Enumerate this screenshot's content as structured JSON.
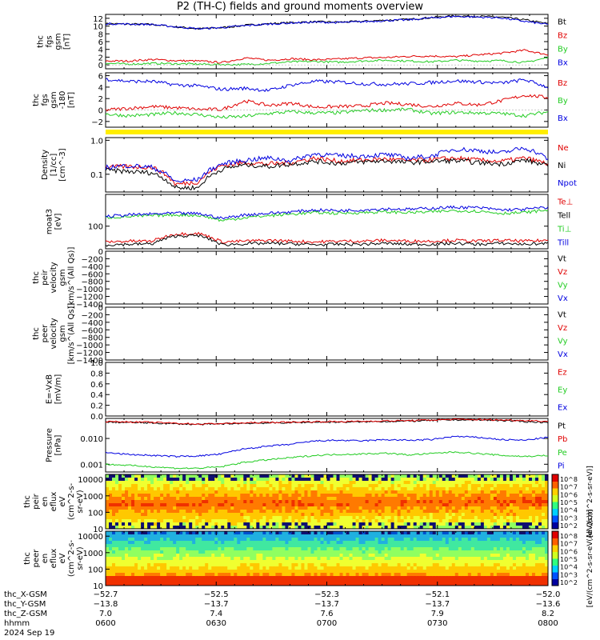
{
  "title": "P2 (TH-C) fields and ground moments overview",
  "colors": {
    "black": "#000000",
    "red": "#e00000",
    "green": "#22cc22",
    "blue": "#0000e0",
    "yellow": "#ffee00"
  },
  "chart_data": [
    {
      "id": "bfield_gsm",
      "type": "line",
      "ylabel": [
        "thc",
        "fgs",
        "gsm",
        "[nT]"
      ],
      "ylim": [
        -1,
        13
      ],
      "yticks": [
        "12",
        "10",
        "8",
        "6",
        "4",
        "2",
        "0"
      ],
      "series": [
        {
          "name": "Bt",
          "color": "black",
          "values": [
            10.6,
            10.5,
            10.4,
            9.8,
            9.3,
            9.6,
            10.2,
            10.6,
            10.9,
            11.1,
            11.0,
            11.2,
            11.5,
            11.7,
            12.2,
            12.6,
            12.5,
            12.3,
            11.6,
            10.6
          ]
        },
        {
          "name": "Bz",
          "color": "red",
          "values": [
            1.0,
            1.0,
            1.4,
            1.1,
            1.0,
            0.6,
            1.8,
            1.2,
            1.6,
            1.3,
            1.5,
            1.8,
            1.9,
            2.2,
            2.3,
            2.1,
            2.6,
            3.0,
            3.8,
            2.6
          ]
        },
        {
          "name": "By",
          "color": "green",
          "values": [
            0.4,
            0.2,
            0.4,
            0.3,
            0.2,
            0.1,
            0.1,
            0.4,
            0.8,
            0.9,
            0.7,
            1.0,
            1.2,
            1.0,
            0.8,
            1.2,
            1.0,
            1.1,
            0.6,
            1.9
          ]
        },
        {
          "name": "Bx",
          "color": "blue",
          "values": [
            10.6,
            10.5,
            10.4,
            9.8,
            9.3,
            9.6,
            10.1,
            10.5,
            10.8,
            11.0,
            10.9,
            11.1,
            11.4,
            11.6,
            12.1,
            12.5,
            12.3,
            12.1,
            11.2,
            10.4
          ]
        }
      ]
    },
    {
      "id": "bfield_detrended",
      "type": "line",
      "ylabel": [
        "thc",
        "fgs",
        "gsm",
        "-180",
        "[nT]"
      ],
      "ylim": [
        -3,
        6.5
      ],
      "yticks": [
        "6",
        "4",
        "2",
        "0",
        "−2"
      ],
      "series": [
        {
          "name": "Bz",
          "color": "red",
          "values": [
            0.0,
            0.3,
            0.6,
            0.4,
            0.1,
            0.1,
            1.6,
            0.8,
            1.2,
            0.5,
            0.6,
            0.7,
            1.2,
            1.0,
            0.6,
            1.2,
            0.9,
            1.6,
            2.6,
            2.2
          ]
        },
        {
          "name": "By",
          "color": "green",
          "values": [
            -0.7,
            -1.0,
            -0.8,
            -0.5,
            -0.8,
            -1.3,
            -1.1,
            -0.6,
            -0.3,
            -0.5,
            -0.5,
            -0.1,
            0.0,
            0.1,
            -0.6,
            -0.4,
            -0.5,
            -0.6,
            -1.0,
            -0.3
          ]
        },
        {
          "name": "Bx",
          "color": "blue",
          "values": [
            5.4,
            5.0,
            5.0,
            4.4,
            4.2,
            3.6,
            3.8,
            3.4,
            4.4,
            5.0,
            4.9,
            4.6,
            4.5,
            4.6,
            4.8,
            5.1,
            4.9,
            4.7,
            5.3,
            4.0
          ]
        }
      ]
    },
    {
      "id": "density",
      "type": "line",
      "log": true,
      "ylabel": [
        "Density",
        "[1/cc]",
        "[cm^-3]"
      ],
      "ylim": [
        0.03,
        1.2
      ],
      "yticks": [
        "1.0",
        "0.1"
      ],
      "series": [
        {
          "name": "Ne",
          "color": "red",
          "values": [
            0.16,
            0.17,
            0.16,
            0.05,
            0.06,
            0.18,
            0.22,
            0.2,
            0.22,
            0.3,
            0.24,
            0.26,
            0.28,
            0.25,
            0.27,
            0.3,
            0.26,
            0.24,
            0.3,
            0.2
          ]
        },
        {
          "name": "Ni",
          "color": "black",
          "values": [
            0.13,
            0.12,
            0.11,
            0.04,
            0.04,
            0.14,
            0.19,
            0.17,
            0.2,
            0.24,
            0.21,
            0.23,
            0.25,
            0.22,
            0.24,
            0.25,
            0.22,
            0.2,
            0.26,
            0.17
          ]
        },
        {
          "name": "Npot",
          "color": "blue",
          "values": [
            0.16,
            0.18,
            0.16,
            0.06,
            0.07,
            0.2,
            0.26,
            0.3,
            0.25,
            0.4,
            0.35,
            0.34,
            0.38,
            0.3,
            0.34,
            0.55,
            0.5,
            0.42,
            0.6,
            0.28
          ]
        }
      ]
    },
    {
      "id": "temperature",
      "type": "line",
      "log": true,
      "ylabel": [
        "moat3",
        "[eV]"
      ],
      "ylim": [
        25,
        700
      ],
      "yticks": [
        "100"
      ],
      "series": [
        {
          "name": "Te⊥",
          "color": "red",
          "values": [
            38,
            40,
            40,
            62,
            64,
            38,
            40,
            42,
            40,
            38,
            40,
            40,
            42,
            40,
            40,
            42,
            40,
            42,
            40,
            42
          ]
        },
        {
          "name": "Tell",
          "color": "black",
          "values": [
            32,
            33,
            34,
            55,
            56,
            32,
            34,
            35,
            34,
            32,
            33,
            33,
            35,
            33,
            33,
            35,
            33,
            35,
            33,
            35
          ]
        },
        {
          "name": "Ti⊥",
          "color": "green",
          "values": [
            170,
            180,
            190,
            200,
            195,
            140,
            170,
            190,
            210,
            230,
            220,
            230,
            240,
            230,
            240,
            260,
            250,
            220,
            230,
            270
          ]
        },
        {
          "name": "Till",
          "color": "blue",
          "values": [
            180,
            200,
            210,
            220,
            215,
            160,
            200,
            220,
            240,
            270,
            260,
            270,
            290,
            280,
            300,
            320,
            310,
            270,
            280,
            320
          ]
        }
      ]
    },
    {
      "id": "ion_velocity",
      "type": "line",
      "ylabel": [
        "thc",
        "peir",
        "velocity",
        "gsm",
        "[km/s^(All Qs)]"
      ],
      "ylim": [
        -1400,
        0
      ],
      "yticks": [
        "0",
        "−200",
        "−400",
        "−600",
        "−800",
        "−1000",
        "−1200",
        "−1400"
      ],
      "legend": [
        "Vt",
        "Vz",
        "Vy",
        "Vx"
      ],
      "series": []
    },
    {
      "id": "electron_velocity",
      "type": "line",
      "ylabel": [
        "thc",
        "peer",
        "velocity",
        "gsm",
        "[km/s^(All Qs)]"
      ],
      "ylim": [
        -1400,
        0
      ],
      "yticks": [
        "0",
        "−200",
        "−400",
        "−600",
        "−800",
        "−1000",
        "−1200",
        "−1400"
      ],
      "legend": [
        "Vt",
        "Vz",
        "Vy",
        "Vx"
      ],
      "series": []
    },
    {
      "id": "efield",
      "type": "line",
      "ylabel": [
        "E=-VxB",
        "[mV/m]"
      ],
      "ylim": [
        0,
        1
      ],
      "yticks": [
        "1.0",
        "0.8",
        "0.6",
        "0.4",
        "0.2",
        "0.0"
      ],
      "legend": [
        "Ez",
        "Ey",
        "Ex"
      ],
      "series": []
    },
    {
      "id": "pressure",
      "type": "line",
      "log": true,
      "ylabel": [
        "Pressure",
        "[nPa]"
      ],
      "ylim": [
        0.0005,
        0.06
      ],
      "yticks": [
        "0.010",
        "0.001"
      ],
      "series": [
        {
          "name": "Pt",
          "color": "black",
          "values": [
            0.043,
            0.042,
            0.04,
            0.037,
            0.035,
            0.037,
            0.039,
            0.04,
            0.041,
            0.043,
            0.043,
            0.044,
            0.046,
            0.047,
            0.05,
            0.053,
            0.052,
            0.05,
            0.045,
            0.042
          ]
        },
        {
          "name": "Pb",
          "color": "red",
          "values": [
            0.045,
            0.044,
            0.042,
            0.039,
            0.036,
            0.038,
            0.04,
            0.042,
            0.043,
            0.045,
            0.045,
            0.046,
            0.048,
            0.049,
            0.052,
            0.055,
            0.054,
            0.052,
            0.05,
            0.046
          ]
        },
        {
          "name": "Pe",
          "color": "green",
          "values": [
            0.001,
            0.0009,
            0.0008,
            0.0007,
            0.0007,
            0.0008,
            0.0012,
            0.0015,
            0.0018,
            0.0022,
            0.0024,
            0.0025,
            0.0027,
            0.0023,
            0.0026,
            0.003,
            0.0026,
            0.0022,
            0.002,
            0.0022
          ]
        },
        {
          "name": "Pi",
          "color": "blue",
          "values": [
            0.0028,
            0.0024,
            0.0022,
            0.002,
            0.0021,
            0.0025,
            0.004,
            0.005,
            0.006,
            0.008,
            0.0085,
            0.008,
            0.009,
            0.0085,
            0.009,
            0.012,
            0.011,
            0.009,
            0.0085,
            0.011
          ]
        }
      ]
    },
    {
      "id": "ion_spectrogram",
      "type": "heatmap",
      "ylabel": [
        "thc",
        "peir",
        "en",
        "eflux",
        "eV",
        "(cm^2-s-",
        "sr-eV)"
      ],
      "ylim": [
        10,
        20000
      ],
      "yticks": [
        "10000",
        "1000",
        "100",
        "10"
      ],
      "colorbar_ticks": [
        "10^8",
        "10^7",
        "10^6",
        "10^5",
        "10^4",
        "10^3",
        "10^2"
      ],
      "colorbar_label": "[eV/(cm^2-s-sr-eV)]"
    },
    {
      "id": "electron_spectrogram",
      "type": "heatmap",
      "ylabel": [
        "thc",
        "peer",
        "en",
        "eflux",
        "eV",
        "(cm^2-s-",
        "sr-eV)"
      ],
      "ylim": [
        10,
        20000
      ],
      "yticks": [
        "10000",
        "1000",
        "100",
        "10"
      ],
      "colorbar_ticks": [
        "10^8",
        "10^7",
        "10^6",
        "10^5",
        "10^4",
        "10^3",
        "10^2"
      ],
      "colorbar_label": "[eV/(cm^2-s-sr-eV(All Qs))]"
    }
  ],
  "x_axis": {
    "rows": [
      {
        "label": "thc_X-GSM",
        "values": [
          "−52.7",
          "−52.5",
          "−52.3",
          "−52.1",
          "−52.0"
        ]
      },
      {
        "label": "thc_Y-GSM",
        "values": [
          "−13.8",
          "−13.7",
          "−13.7",
          "−13.7",
          "−13.6"
        ]
      },
      {
        "label": "thc_Z-GSM",
        "values": [
          "7.0",
          "7.4",
          "7.6",
          "7.9",
          "8.2"
        ]
      },
      {
        "label": "hhmm",
        "values": [
          "0600",
          "0630",
          "0700",
          "0730",
          "0800"
        ]
      }
    ],
    "date": "2024 Sep 19"
  }
}
